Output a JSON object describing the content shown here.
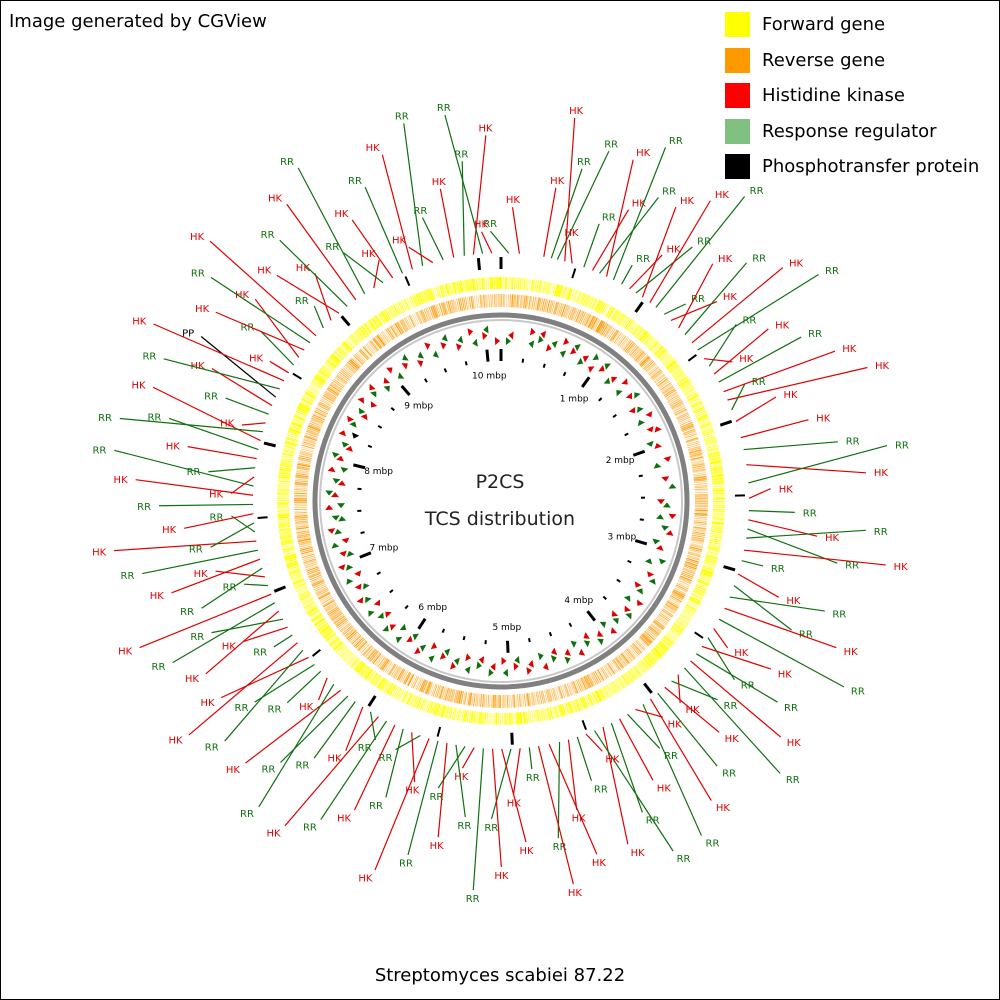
{
  "credit": "Image generated by CGView",
  "title": "P2CS",
  "subtitle": "TCS distribution",
  "caption": "Streptomyces scabiei 87.22",
  "legend": [
    {
      "label": "Forward gene",
      "color": "#ffff00"
    },
    {
      "label": "Reverse gene",
      "color": "#ff9900"
    },
    {
      "label": "Histidine kinase",
      "color": "#ff0000"
    },
    {
      "label": "Response regulator",
      "color": "#80c080"
    },
    {
      "label": "Phosphotransfer protein",
      "color": "#000000"
    }
  ],
  "colors": {
    "forward_track": "#ffff00",
    "reverse_track": "#ff9900",
    "backbone": "#808080",
    "hk": "#e00000",
    "rr": "#107010",
    "pp": "#000000"
  },
  "genome": {
    "length_mbp": 10.15
  },
  "ticks": [
    {
      "mbp": 1,
      "label": "1 mbp"
    },
    {
      "mbp": 2,
      "label": "2 mbp"
    },
    {
      "mbp": 3,
      "label": "3 mbp"
    },
    {
      "mbp": 4,
      "label": "4 mbp"
    },
    {
      "mbp": 5,
      "label": "5 mbp"
    },
    {
      "mbp": 6,
      "label": "6 mbp"
    },
    {
      "mbp": 7,
      "label": "7 mbp"
    },
    {
      "mbp": 8,
      "label": "8 mbp"
    },
    {
      "mbp": 9,
      "label": "9 mbp"
    },
    {
      "mbp": 10,
      "label": "10 mbp"
    }
  ],
  "features": [
    {
      "type": "RR",
      "mbp": 0.05
    },
    {
      "type": "HK",
      "mbp": 0.12
    },
    {
      "type": "HK",
      "mbp": 0.28
    },
    {
      "type": "RR",
      "mbp": 0.33
    },
    {
      "type": "RR",
      "mbp": 0.37
    },
    {
      "type": "HK",
      "mbp": 0.42
    },
    {
      "type": "HK",
      "mbp": 0.47
    },
    {
      "type": "RR",
      "mbp": 0.55
    },
    {
      "type": "HK",
      "mbp": 0.61
    },
    {
      "type": "RR",
      "mbp": 0.66
    },
    {
      "type": "HK",
      "mbp": 0.71
    },
    {
      "type": "RR",
      "mbp": 0.76
    },
    {
      "type": "RR",
      "mbp": 0.82
    },
    {
      "type": "HK",
      "mbp": 0.88
    },
    {
      "type": "RR",
      "mbp": 0.93
    },
    {
      "type": "HK",
      "mbp": 0.98
    },
    {
      "type": "HK",
      "mbp": 1.04
    },
    {
      "type": "RR",
      "mbp": 1.09
    },
    {
      "type": "RR",
      "mbp": 1.16
    },
    {
      "type": "HK",
      "mbp": 1.22
    },
    {
      "type": "HK",
      "mbp": 1.29
    },
    {
      "type": "RR",
      "mbp": 1.35
    },
    {
      "type": "HK",
      "mbp": 1.42
    },
    {
      "type": "RR",
      "mbp": 1.48
    },
    {
      "type": "HK",
      "mbp": 1.55
    },
    {
      "type": "RR",
      "mbp": 1.61
    },
    {
      "type": "HK",
      "mbp": 1.67
    },
    {
      "type": "RR",
      "mbp": 1.73
    },
    {
      "type": "HK",
      "mbp": 1.8
    },
    {
      "type": "HK",
      "mbp": 1.86
    },
    {
      "type": "RR",
      "mbp": 1.93
    },
    {
      "type": "HK",
      "mbp": 2.01
    },
    {
      "type": "HK",
      "mbp": 2.12
    },
    {
      "type": "RR",
      "mbp": 2.2
    },
    {
      "type": "HK",
      "mbp": 2.3
    },
    {
      "type": "RR",
      "mbp": 2.42
    },
    {
      "type": "HK",
      "mbp": 2.52
    },
    {
      "type": "RR",
      "mbp": 2.6
    },
    {
      "type": "HK",
      "mbp": 2.66
    },
    {
      "type": "RR",
      "mbp": 2.72
    },
    {
      "type": "RR",
      "mbp": 2.78
    },
    {
      "type": "HK",
      "mbp": 2.86
    },
    {
      "type": "RR",
      "mbp": 2.93
    },
    {
      "type": "HK",
      "mbp": 3.02
    },
    {
      "type": "RR",
      "mbp": 3.1
    },
    {
      "type": "RR",
      "mbp": 3.18
    },
    {
      "type": "HK",
      "mbp": 3.26
    },
    {
      "type": "RR",
      "mbp": 3.34
    },
    {
      "type": "HK",
      "mbp": 3.41
    },
    {
      "type": "RR",
      "mbp": 3.48
    },
    {
      "type": "HK",
      "mbp": 3.55
    },
    {
      "type": "RR",
      "mbp": 3.61
    },
    {
      "type": "HK",
      "mbp": 3.67
    },
    {
      "type": "RR",
      "mbp": 3.73
    },
    {
      "type": "HK",
      "mbp": 3.79
    },
    {
      "type": "RR",
      "mbp": 3.85
    },
    {
      "type": "HK",
      "mbp": 3.91
    },
    {
      "type": "RR",
      "mbp": 3.97
    },
    {
      "type": "HK",
      "mbp": 4.03
    },
    {
      "type": "RR",
      "mbp": 4.09
    },
    {
      "type": "HK",
      "mbp": 4.15
    },
    {
      "type": "RR",
      "mbp": 4.21
    },
    {
      "type": "HK",
      "mbp": 4.27
    },
    {
      "type": "RR",
      "mbp": 4.33
    },
    {
      "type": "HK",
      "mbp": 4.39
    },
    {
      "type": "RR",
      "mbp": 4.45
    },
    {
      "type": "HK",
      "mbp": 4.51
    },
    {
      "type": "RR",
      "mbp": 4.57
    },
    {
      "type": "HK",
      "mbp": 4.63
    },
    {
      "type": "RR",
      "mbp": 4.69
    },
    {
      "type": "HK",
      "mbp": 4.76
    },
    {
      "type": "HK",
      "mbp": 4.83
    },
    {
      "type": "RR",
      "mbp": 4.89
    },
    {
      "type": "HK",
      "mbp": 4.95
    },
    {
      "type": "RR",
      "mbp": 5.01
    },
    {
      "type": "HK",
      "mbp": 5.07
    },
    {
      "type": "HK",
      "mbp": 5.13
    },
    {
      "type": "RR",
      "mbp": 5.19
    },
    {
      "type": "HK",
      "mbp": 5.25
    },
    {
      "type": "RR",
      "mbp": 5.31
    },
    {
      "type": "RR",
      "mbp": 5.37
    },
    {
      "type": "HK",
      "mbp": 5.43
    },
    {
      "type": "RR",
      "mbp": 5.49
    },
    {
      "type": "HK",
      "mbp": 5.55
    },
    {
      "type": "RR",
      "mbp": 5.61
    },
    {
      "type": "HK",
      "mbp": 5.67
    },
    {
      "type": "RR",
      "mbp": 5.73
    },
    {
      "type": "HK",
      "mbp": 5.79
    },
    {
      "type": "RR",
      "mbp": 5.85
    },
    {
      "type": "HK",
      "mbp": 5.91
    },
    {
      "type": "RR",
      "mbp": 5.97
    },
    {
      "type": "HK",
      "mbp": 6.03
    },
    {
      "type": "RR",
      "mbp": 6.09
    },
    {
      "type": "RR",
      "mbp": 6.15
    },
    {
      "type": "HK",
      "mbp": 6.21
    },
    {
      "type": "RR",
      "mbp": 6.27
    },
    {
      "type": "HK",
      "mbp": 6.33
    },
    {
      "type": "RR",
      "mbp": 6.39
    },
    {
      "type": "RR",
      "mbp": 6.45
    },
    {
      "type": "HK",
      "mbp": 6.51
    },
    {
      "type": "RR",
      "mbp": 6.57
    },
    {
      "type": "HK",
      "mbp": 6.63
    },
    {
      "type": "RR",
      "mbp": 6.69
    },
    {
      "type": "HK",
      "mbp": 6.75
    },
    {
      "type": "RR",
      "mbp": 6.81
    },
    {
      "type": "HK",
      "mbp": 6.87
    },
    {
      "type": "RR",
      "mbp": 6.93
    },
    {
      "type": "HK",
      "mbp": 6.99
    },
    {
      "type": "RR",
      "mbp": 7.05
    },
    {
      "type": "HK",
      "mbp": 7.11
    },
    {
      "type": "RR",
      "mbp": 7.17
    },
    {
      "type": "HK",
      "mbp": 7.23
    },
    {
      "type": "RR",
      "mbp": 7.29
    },
    {
      "type": "HK",
      "mbp": 7.35
    },
    {
      "type": "RR",
      "mbp": 7.41
    },
    {
      "type": "RR",
      "mbp": 7.47
    },
    {
      "type": "HK",
      "mbp": 7.53
    },
    {
      "type": "RR",
      "mbp": 7.59
    },
    {
      "type": "HK",
      "mbp": 7.65
    },
    {
      "type": "RR",
      "mbp": 7.71
    },
    {
      "type": "HK",
      "mbp": 7.77
    },
    {
      "type": "RR",
      "mbp": 7.83
    },
    {
      "type": "HK",
      "mbp": 7.89
    },
    {
      "type": "RR",
      "mbp": 7.95
    },
    {
      "type": "HK",
      "mbp": 8.01
    },
    {
      "type": "RR",
      "mbp": 8.07
    },
    {
      "type": "HK",
      "mbp": 8.13
    },
    {
      "type": "RR",
      "mbp": 8.19
    },
    {
      "type": "HK",
      "mbp": 8.25
    },
    {
      "type": "PP",
      "mbp": 8.31
    },
    {
      "type": "RR",
      "mbp": 8.37
    },
    {
      "type": "HK",
      "mbp": 8.43
    },
    {
      "type": "HK",
      "mbp": 8.49
    },
    {
      "type": "RR",
      "mbp": 8.55
    },
    {
      "type": "HK",
      "mbp": 8.61
    },
    {
      "type": "HK",
      "mbp": 8.67
    },
    {
      "type": "RR",
      "mbp": 8.73
    },
    {
      "type": "HK",
      "mbp": 8.79
    },
    {
      "type": "RR",
      "mbp": 8.86
    },
    {
      "type": "HK",
      "mbp": 8.93
    },
    {
      "type": "HK",
      "mbp": 9.0
    },
    {
      "type": "RR",
      "mbp": 9.07
    },
    {
      "type": "HK",
      "mbp": 9.14
    },
    {
      "type": "RR",
      "mbp": 9.21
    },
    {
      "type": "HK",
      "mbp": 9.28
    },
    {
      "type": "RR",
      "mbp": 9.35
    },
    {
      "type": "HK",
      "mbp": 9.42
    },
    {
      "type": "RR",
      "mbp": 9.49
    },
    {
      "type": "HK",
      "mbp": 9.56
    },
    {
      "type": "RR",
      "mbp": 9.63
    },
    {
      "type": "HK",
      "mbp": 9.7
    },
    {
      "type": "RR",
      "mbp": 9.77
    },
    {
      "type": "HK",
      "mbp": 9.84
    },
    {
      "type": "RR",
      "mbp": 9.91
    },
    {
      "type": "HK",
      "mbp": 9.97
    },
    {
      "type": "RR",
      "mbp": 10.03
    },
    {
      "type": "HK",
      "mbp": 10.09
    }
  ]
}
